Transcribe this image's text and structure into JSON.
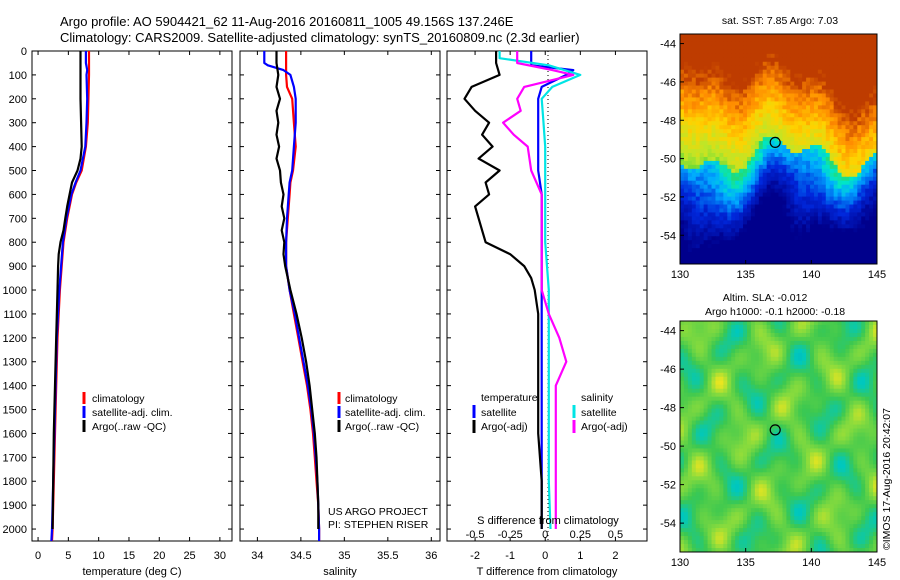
{
  "header": {
    "title_line1": "Argo profile: AO 5904421_62 11-Aug-2016 20160811_1005 49.156S 137.246E",
    "title_line2": "Climatology: CARS2009. Satellite-adjusted climatology: synTS_20160809.nc (2.3d earlier)"
  },
  "colors": {
    "climatology": "#ff0000",
    "satellite_adj": "#0000ff",
    "argo": "#000000",
    "salinity_satellite": "#00e5e5",
    "salinity_argo": "#ff00ff"
  },
  "depth_axis": {
    "range": [
      0,
      2050
    ],
    "ticks": [
      0,
      100,
      200,
      300,
      400,
      500,
      600,
      700,
      800,
      900,
      1000,
      1100,
      1200,
      1300,
      1400,
      1500,
      1600,
      1700,
      1800,
      1900,
      2000
    ]
  },
  "legends": {
    "climatology": "climatology",
    "satellite_adj": "satellite-adj. clim.",
    "argo": "Argo(..raw -QC)",
    "diff_temperature": "temperature",
    "diff_salinity": "salinity",
    "diff_satellite": "satellite",
    "diff_argo": "Argo(-adj)"
  },
  "annotations": {
    "project": "US ARGO PROJECT",
    "pi": "PI: STEPHEN RISER",
    "credit": "©IMOS 17-Aug-2016 20:42:07"
  },
  "maps": {
    "sst": {
      "title": "sat. SST: 7.85 Argo: 7.03",
      "xticks": [
        "130",
        "135",
        "140",
        "145"
      ],
      "yticks": [
        "-44",
        "-46",
        "-48",
        "-50",
        "-52",
        "-54"
      ],
      "x_range": [
        130,
        145
      ],
      "y_range": [
        -55.5,
        -43.5
      ],
      "marker": {
        "lon": 137.246,
        "lat": -49.156
      }
    },
    "sla": {
      "title1": "Altim. SLA: -0.012",
      "title2": "Argo h1000: -0.1 h2000: -0.18",
      "xticks": [
        "130",
        "135",
        "140",
        "145"
      ],
      "yticks": [
        "-44",
        "-46",
        "-48",
        "-50",
        "-52",
        "-54"
      ],
      "x_range": [
        130,
        145
      ],
      "y_range": [
        -55.5,
        -43.5
      ],
      "marker": {
        "lon": 137.246,
        "lat": -49.156
      }
    }
  },
  "chart_data": [
    {
      "type": "line",
      "xlabel": "temperature (deg C)",
      "xlim": [
        -1,
        32
      ],
      "xticks": [
        "0",
        "5",
        "10",
        "15",
        "20",
        "25",
        "30"
      ],
      "ylim": [
        2050,
        0
      ],
      "series": [
        {
          "name": "climatology",
          "color": "#ff0000",
          "depth": [
            0,
            20,
            50,
            100,
            200,
            300,
            400,
            500,
            550,
            600,
            700,
            800,
            900,
            1000,
            1200,
            1400,
            1600,
            1800,
            2000,
            2050
          ],
          "values": [
            8.4,
            8.4,
            8.4,
            8.4,
            8.3,
            8.2,
            7.9,
            7.2,
            6.3,
            5.6,
            4.8,
            4.2,
            3.9,
            3.6,
            3.2,
            3.0,
            2.8,
            2.6,
            2.4,
            2.3
          ]
        },
        {
          "name": "satellite-adj. clim.",
          "color": "#0000ff",
          "depth": [
            0,
            20,
            50,
            80,
            100,
            200,
            300,
            400,
            500,
            550,
            600,
            700,
            800,
            900,
            1000,
            1200,
            1400,
            1600,
            1800,
            2000,
            2050
          ],
          "values": [
            7.9,
            7.9,
            7.9,
            8.1,
            8.0,
            8.1,
            8.0,
            7.8,
            7.0,
            6.2,
            5.5,
            4.7,
            4.1,
            3.8,
            3.5,
            3.1,
            2.9,
            2.7,
            2.5,
            2.3,
            2.2
          ]
        },
        {
          "name": "Argo(..raw -QC)",
          "color": "#000000",
          "depth": [
            0,
            20,
            50,
            100,
            200,
            300,
            400,
            450,
            500,
            550,
            600,
            650,
            700,
            750,
            800,
            850,
            900,
            1000,
            1200,
            1400,
            1600,
            1800,
            2000
          ],
          "values": [
            7.0,
            7.0,
            7.0,
            7.0,
            7.0,
            7.1,
            7.2,
            7.0,
            6.5,
            5.6,
            5.2,
            4.8,
            4.5,
            4.2,
            3.7,
            3.4,
            3.3,
            3.2,
            3.0,
            2.8,
            2.6,
            2.5,
            2.4
          ]
        }
      ]
    },
    {
      "type": "line",
      "xlabel": "salinity",
      "xlim": [
        33.8,
        36.1
      ],
      "xticks": [
        "34",
        "34.5",
        "35",
        "35.5",
        "36"
      ],
      "ylim": [
        2050,
        0
      ],
      "series": [
        {
          "name": "climatology",
          "color": "#ff0000",
          "depth": [
            0,
            50,
            100,
            150,
            200,
            300,
            400,
            500,
            550,
            600,
            700,
            800,
            900,
            1000,
            1100,
            1200,
            1300,
            1400,
            1500,
            1600,
            1700,
            1800,
            1900,
            2000,
            2050
          ],
          "values": [
            34.33,
            34.33,
            34.33,
            34.34,
            34.4,
            34.42,
            34.44,
            34.41,
            34.38,
            34.37,
            34.35,
            34.33,
            34.33,
            34.37,
            34.42,
            34.47,
            34.52,
            34.57,
            34.61,
            34.64,
            34.66,
            34.68,
            34.7,
            34.71,
            34.71
          ]
        },
        {
          "name": "satellite-adj. clim.",
          "color": "#0000ff",
          "depth": [
            0,
            50,
            60,
            80,
            100,
            150,
            200,
            300,
            400,
            500,
            550,
            600,
            700,
            800,
            900,
            1000,
            1100,
            1200,
            1300,
            1400,
            1500,
            1600,
            1700,
            1800,
            1900,
            2000,
            2050
          ],
          "values": [
            34.08,
            34.08,
            34.12,
            34.3,
            34.38,
            34.42,
            34.44,
            34.44,
            34.42,
            34.4,
            34.37,
            34.36,
            34.34,
            34.33,
            34.33,
            34.37,
            34.43,
            34.48,
            34.53,
            34.58,
            34.62,
            34.65,
            34.67,
            34.69,
            34.7,
            34.71,
            34.71
          ]
        },
        {
          "name": "Argo(..raw -QC)",
          "color": "#000000",
          "depth": [
            0,
            50,
            100,
            150,
            200,
            250,
            300,
            350,
            400,
            450,
            500,
            550,
            600,
            650,
            700,
            750,
            800,
            850,
            900,
            1000,
            1100,
            1200,
            1300,
            1400,
            1500,
            1600,
            1700,
            1800,
            1900,
            2000
          ],
          "values": [
            34.22,
            34.22,
            34.24,
            34.22,
            34.26,
            34.22,
            34.24,
            34.22,
            34.25,
            34.22,
            34.26,
            34.27,
            34.3,
            34.28,
            34.31,
            34.28,
            34.31,
            34.3,
            34.32,
            34.38,
            34.45,
            34.51,
            34.56,
            34.6,
            34.63,
            34.66,
            34.68,
            34.69,
            34.7,
            34.7
          ]
        }
      ]
    },
    {
      "type": "line",
      "xlabel": "T difference from climatology",
      "xlabel_top": "S difference from climatology",
      "xlim": [
        -2.8,
        2.9
      ],
      "xticks": [
        "-2",
        "-1",
        "0",
        "1",
        "2"
      ],
      "top_ticks": [
        {
          "label": "-0.5",
          "t_value": -2
        },
        {
          "label": "-0.25",
          "t_value": -1
        },
        {
          "label": "0",
          "t_value": 0
        },
        {
          "label": "0.25",
          "t_value": 1
        },
        {
          "label": "0.5",
          "t_value": 2
        }
      ],
      "ylim": [
        2050,
        0
      ],
      "series": [
        {
          "name": "temperature satellite",
          "color": "#0000ff",
          "depth": [
            0,
            60,
            80,
            100,
            150,
            200,
            300,
            400,
            500,
            600,
            700,
            800,
            900,
            1000,
            1200,
            1400,
            1600,
            1800,
            2000
          ],
          "values": [
            -0.4,
            -0.4,
            0.8,
            0.6,
            -0.1,
            -0.2,
            -0.2,
            -0.2,
            -0.2,
            -0.1,
            -0.1,
            -0.1,
            -0.1,
            -0.1,
            -0.1,
            -0.1,
            -0.1,
            -0.1,
            -0.1
          ]
        },
        {
          "name": "temperature Argo(-adj)",
          "color": "#000000",
          "depth": [
            0,
            50,
            100,
            150,
            200,
            250,
            300,
            350,
            400,
            450,
            500,
            550,
            600,
            650,
            700,
            750,
            800,
            850,
            900,
            950,
            1000,
            1100,
            1200,
            1400,
            1600,
            1800,
            2000
          ],
          "values": [
            -1.4,
            -1.4,
            -1.3,
            -2.1,
            -2.3,
            -2.0,
            -1.6,
            -1.8,
            -1.5,
            -1.9,
            -1.3,
            -1.7,
            -1.6,
            -2.0,
            -1.9,
            -1.8,
            -1.7,
            -1.0,
            -0.6,
            -0.4,
            -0.3,
            -0.2,
            -0.2,
            -0.2,
            -0.2,
            -0.1,
            -0.1
          ]
        },
        {
          "name": "salinity satellite",
          "color": "#00e5e5",
          "depth": [
            0,
            30,
            60,
            100,
            150,
            200,
            300,
            400,
            500,
            600,
            700,
            800,
            1000,
            1200,
            1400,
            1600,
            1800,
            2000
          ],
          "values": [
            -1.3,
            -1.3,
            0.1,
            1.0,
            0.2,
            -0.1,
            -0.05,
            0.0,
            0.0,
            0.0,
            0.0,
            0.0,
            0.1,
            0.1,
            0.1,
            0.1,
            0.1,
            0.15
          ]
        },
        {
          "name": "salinity Argo(-adj)",
          "color": "#ff00ff",
          "depth": [
            0,
            50,
            80,
            100,
            150,
            200,
            250,
            300,
            350,
            400,
            500,
            600,
            700,
            800,
            900,
            1000,
            1100,
            1200,
            1300,
            1400,
            1600,
            1800,
            2000
          ],
          "values": [
            -0.8,
            -0.8,
            0.2,
            0.8,
            -0.6,
            -0.8,
            -0.7,
            -1.2,
            -0.9,
            -0.5,
            -0.4,
            -0.1,
            -0.1,
            -0.1,
            -0.1,
            -0.1,
            0.1,
            0.4,
            0.6,
            0.3,
            0.3,
            0.3,
            0.3
          ]
        }
      ]
    }
  ]
}
